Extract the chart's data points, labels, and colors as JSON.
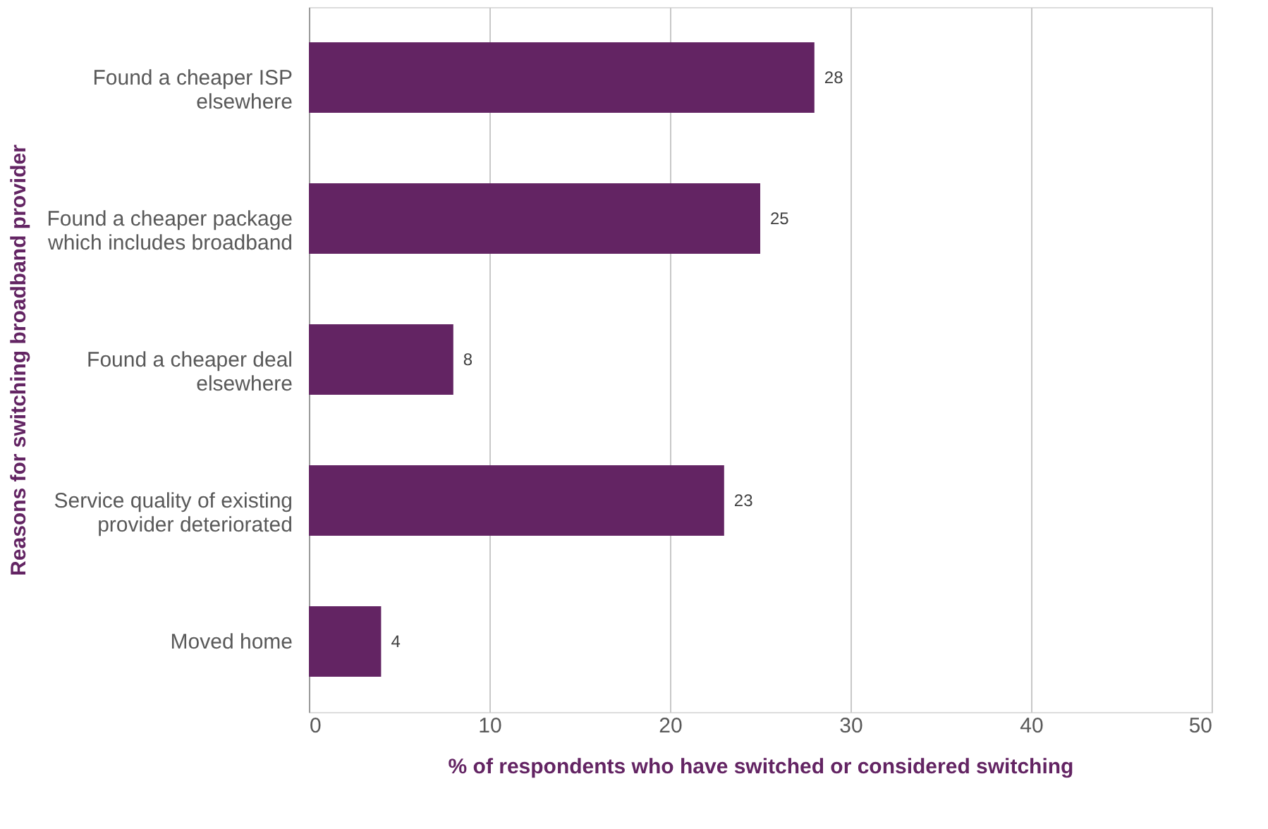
{
  "chart_data": {
    "type": "bar",
    "orientation": "horizontal",
    "categories": [
      "Found a cheaper ISP elsewhere",
      "Found a cheaper package which includes broadband",
      "Found a cheaper deal elsewhere",
      "Service quality of existing provider deteriorated",
      "Moved home"
    ],
    "values": [
      28,
      25,
      8,
      23,
      4
    ],
    "color": "#632463",
    "xlim": [
      0,
      50
    ],
    "xticks": [
      0,
      10,
      20,
      30,
      40,
      50
    ],
    "grid": "x",
    "data_labels": true,
    "xlabel": "% of respondents who have switched or considered switching",
    "ylabel": "Reasons for switching broadband provider"
  }
}
